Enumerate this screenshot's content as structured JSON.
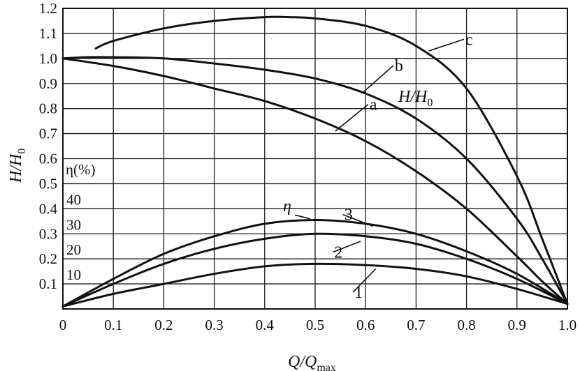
{
  "chart_data": {
    "type": "line",
    "xlabel_parts": [
      "Q/Q",
      "max"
    ],
    "ylabel_parts": [
      "H/H",
      "0"
    ],
    "xlim": [
      0,
      1.0
    ],
    "ylim": [
      0,
      1.2
    ],
    "x_ticks": [
      "0",
      "0.1",
      "0.2",
      "0.3",
      "0.4",
      "0.5",
      "0.6",
      "0.7",
      "0.8",
      "0.9",
      "1.0"
    ],
    "y_ticks": [
      "0.1",
      "0.2",
      "0.3",
      "0.4",
      "0.5",
      "0.6",
      "0.7",
      "0.8",
      "0.9",
      "1.0",
      "1.1",
      "1.2"
    ],
    "eta_axis": {
      "title": "η(%)",
      "ticks": [
        "10",
        "20",
        "30",
        "40"
      ]
    },
    "annotations": {
      "head_group": [
        "H/H",
        "0"
      ],
      "efficiency_group": "η"
    },
    "grid": true,
    "series": [
      {
        "name": "a",
        "group": "head",
        "x": [
          0,
          0.1,
          0.2,
          0.3,
          0.4,
          0.5,
          0.6,
          0.7,
          0.8,
          0.9,
          0.95,
          1.0
        ],
        "y": [
          1.0,
          0.97,
          0.93,
          0.88,
          0.83,
          0.76,
          0.67,
          0.55,
          0.4,
          0.21,
          0.11,
          0.02
        ]
      },
      {
        "name": "b",
        "group": "head",
        "x": [
          0,
          0.05,
          0.1,
          0.2,
          0.3,
          0.4,
          0.5,
          0.6,
          0.7,
          0.8,
          0.9,
          0.95,
          1.0
        ],
        "y": [
          1.0,
          1.005,
          1.005,
          1.0,
          0.98,
          0.955,
          0.92,
          0.86,
          0.76,
          0.6,
          0.36,
          0.2,
          0.02
        ]
      },
      {
        "name": "c",
        "group": "head",
        "x": [
          0.065,
          0.1,
          0.2,
          0.3,
          0.4,
          0.45,
          0.5,
          0.6,
          0.7,
          0.8,
          0.9,
          0.95,
          1.0
        ],
        "y": [
          1.04,
          1.07,
          1.12,
          1.15,
          1.165,
          1.165,
          1.16,
          1.13,
          1.05,
          0.88,
          0.53,
          0.28,
          0.02
        ]
      },
      {
        "name": "1",
        "group": "efficiency",
        "x": [
          0,
          0.1,
          0.2,
          0.3,
          0.4,
          0.5,
          0.6,
          0.7,
          0.8,
          0.9,
          1.0
        ],
        "y": [
          0.01,
          0.06,
          0.1,
          0.14,
          0.17,
          0.18,
          0.175,
          0.16,
          0.13,
          0.08,
          0.02
        ]
      },
      {
        "name": "2",
        "group": "efficiency",
        "x": [
          0,
          0.1,
          0.2,
          0.3,
          0.4,
          0.5,
          0.6,
          0.7,
          0.8,
          0.9,
          1.0
        ],
        "y": [
          0.01,
          0.1,
          0.18,
          0.24,
          0.28,
          0.3,
          0.29,
          0.26,
          0.2,
          0.12,
          0.02
        ]
      },
      {
        "name": "3",
        "group": "efficiency",
        "x": [
          0,
          0.1,
          0.2,
          0.3,
          0.4,
          0.5,
          0.6,
          0.7,
          0.8,
          0.9,
          1.0
        ],
        "y": [
          0.01,
          0.12,
          0.22,
          0.29,
          0.34,
          0.355,
          0.34,
          0.3,
          0.23,
          0.14,
          0.02
        ]
      }
    ]
  }
}
